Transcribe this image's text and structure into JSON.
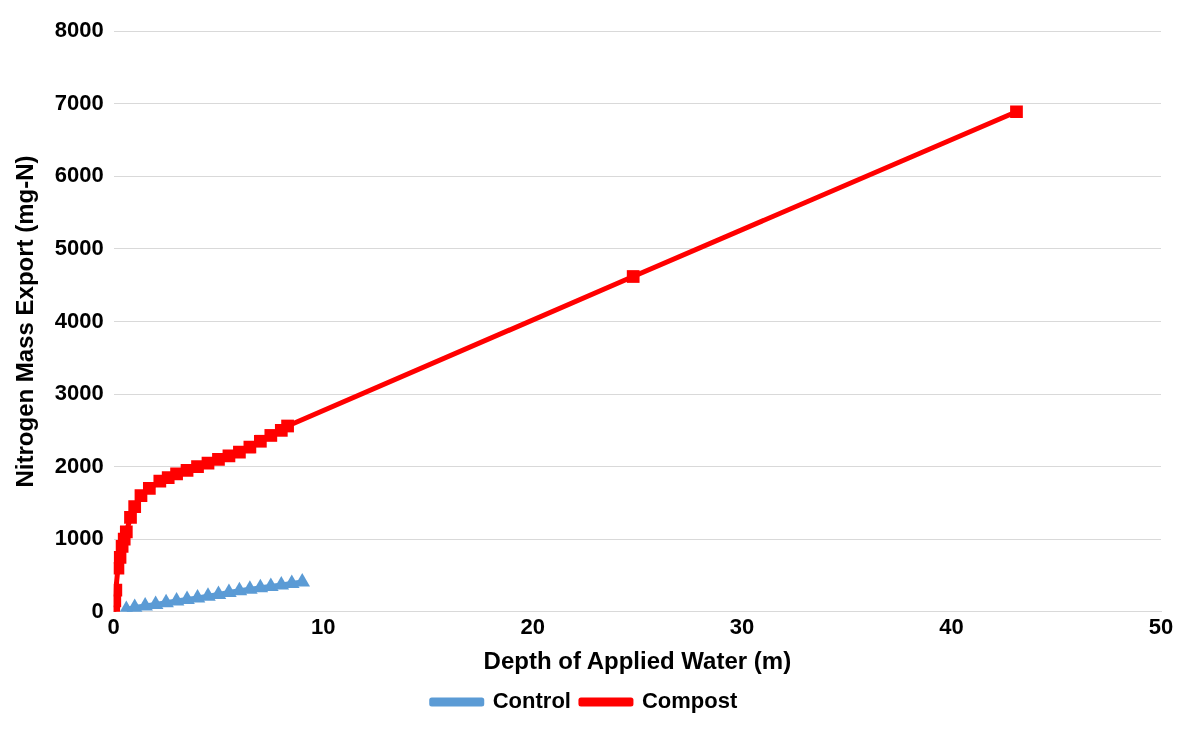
{
  "chart_data": {
    "type": "line",
    "xlabel": "Depth of Applied Water (m)",
    "ylabel": "Nitrogen Mass Export (mg-N)",
    "xlim": [
      0,
      50
    ],
    "xticks": [
      0,
      10,
      20,
      30,
      40,
      50
    ],
    "ylim": [
      0,
      8000
    ],
    "yticks": [
      0,
      1000,
      2000,
      3000,
      4000,
      5000,
      6000,
      7000,
      8000
    ],
    "grid": "y",
    "legend": "bottom",
    "series": [
      {
        "name": "Control",
        "color": "#5b9bd5",
        "marker": "triangle",
        "x": [
          0.6,
          1,
          1.5,
          2,
          2.5,
          3,
          3.5,
          4,
          4.5,
          5,
          5.5,
          6,
          6.5,
          7,
          7.5,
          8,
          8.5,
          9
        ],
        "values": [
          30,
          60,
          80,
          100,
          125,
          150,
          170,
          190,
          215,
          240,
          265,
          290,
          310,
          330,
          350,
          370,
          390,
          410
        ]
      },
      {
        "name": "Compost",
        "color": "#ff0000",
        "marker": "square",
        "x": [
          0,
          0.05,
          0.1,
          0.2,
          0.3,
          0.4,
          0.5,
          0.6,
          0.8,
          1,
          1.3,
          1.7,
          2.2,
          2.6,
          3,
          3.5,
          4,
          4.5,
          5,
          5.5,
          6,
          6.5,
          7,
          7.5,
          8,
          8.3,
          24.8,
          43.1
        ],
        "values": [
          0,
          150,
          300,
          600,
          750,
          900,
          1000,
          1100,
          1300,
          1450,
          1600,
          1700,
          1800,
          1850,
          1900,
          1950,
          2000,
          2050,
          2100,
          2150,
          2200,
          2270,
          2350,
          2430,
          2500,
          2560,
          4620,
          6890
        ]
      }
    ]
  }
}
